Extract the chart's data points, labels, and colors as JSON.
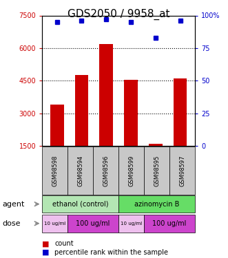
{
  "title": "GDS2050 / 9958_at",
  "samples": [
    "GSM98598",
    "GSM98594",
    "GSM98596",
    "GSM98599",
    "GSM98595",
    "GSM98597"
  ],
  "bar_values": [
    3400,
    4750,
    6200,
    4550,
    1580,
    4600
  ],
  "percentile_values": [
    95,
    96,
    97,
    95,
    83,
    96
  ],
  "bar_color": "#cc0000",
  "dot_color": "#0000cc",
  "ylim_left": [
    1500,
    7500
  ],
  "ylim_right": [
    0,
    100
  ],
  "yticks_left": [
    1500,
    3000,
    4500,
    6000,
    7500
  ],
  "yticks_right": [
    0,
    25,
    50,
    75,
    100
  ],
  "agent_color_control": "#b3e6b3",
  "agent_color_treatment": "#66dd66",
  "dose_color_low": "#eec0ee",
  "dose_color_high": "#cc44cc",
  "legend_count_color": "#cc0000",
  "legend_dot_color": "#0000cc",
  "tick_fontsize": 7,
  "title_fontsize": 11,
  "sample_fontsize": 6,
  "agent_fontsize": 7,
  "dose_high_fontsize": 7,
  "dose_low_fontsize": 5,
  "label_fontsize": 8,
  "legend_fontsize": 7
}
